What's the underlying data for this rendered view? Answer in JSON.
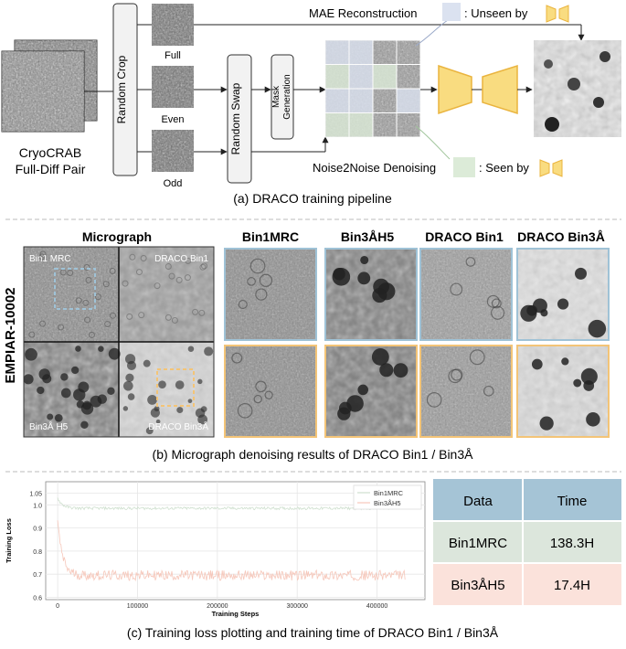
{
  "panel_a": {
    "input_label_line1": "CryoCRAB",
    "input_label_line2": "Full-Diff Pair",
    "random_crop": "Random Crop",
    "random_swap": "Random Swap",
    "mask_generation_line1": "Mask",
    "mask_generation_line2": "Generation",
    "crop_labels": [
      "Full",
      "Even",
      "Odd"
    ],
    "mae_label": "MAE Reconstruction",
    "unseen_label": ": Unseen by",
    "n2n_label": "Noise2Noise Denoising",
    "seen_label": ": Seen by",
    "caption": "(a) DRACO training pipeline",
    "colors": {
      "unseen": "#dbe2f0",
      "seen": "#dcebd8",
      "model": "#f8d978"
    }
  },
  "panel_b": {
    "dataset_label": "EMPIAR-10002",
    "micrograph_header": "Micrograph",
    "quadrant_labels": [
      "Bin1 MRC",
      "DRACO Bin1",
      "Bin3Å H5",
      "DRACO Bin3Å"
    ],
    "column_headers": [
      "Bin1MRC",
      "Bin3ÅH5",
      "DRACO Bin1",
      "DRACO Bin3Å"
    ],
    "caption": "(b) Micrograph denoising results of DRACO Bin1 / Bin3Å",
    "colors": {
      "blue_frame": "#9fc2d6",
      "orange_frame": "#f3c477"
    }
  },
  "panel_c": {
    "caption": "(c) Training loss plotting and training time of DRACO Bin1 / Bin3Å",
    "table": {
      "headers": [
        "Data",
        "Time"
      ],
      "rows": [
        {
          "data": "Bin1MRC",
          "time": "138.3H"
        },
        {
          "data": "Bin3ÅH5",
          "time": "17.4H"
        }
      ],
      "colors": {
        "header": "#a5c4d6",
        "row1": "#dce6dc",
        "row2": "#fbe2db"
      }
    }
  },
  "chart_data": {
    "type": "line",
    "title": "",
    "xlabel": "Training Steps",
    "ylabel": "Training Loss",
    "xlim": [
      -15000,
      460000
    ],
    "ylim": [
      0.59,
      1.1
    ],
    "xticks": [
      0,
      100000,
      200000,
      300000,
      400000
    ],
    "xtick_labels": [
      "0",
      "100000",
      "200000",
      "300000",
      "400000"
    ],
    "yticks": [
      0.6,
      0.7,
      0.8,
      0.9,
      1.0,
      1.05
    ],
    "ytick_labels": [
      "0.6",
      "0.7",
      "0.8",
      "0.9",
      "1.0",
      "1.05"
    ],
    "grid": true,
    "legend_position": "top-right",
    "series": [
      {
        "name": "Bin1MRC",
        "color": "#cfe0cf",
        "x_max": 435000,
        "start": 1.03,
        "plateau": 0.985,
        "noise": 0.006
      },
      {
        "name": "Bin3ÅH5",
        "color": "#f6c7ba",
        "x_max": 435000,
        "start": 0.93,
        "plateau": 0.695,
        "noise": 0.022
      }
    ]
  }
}
